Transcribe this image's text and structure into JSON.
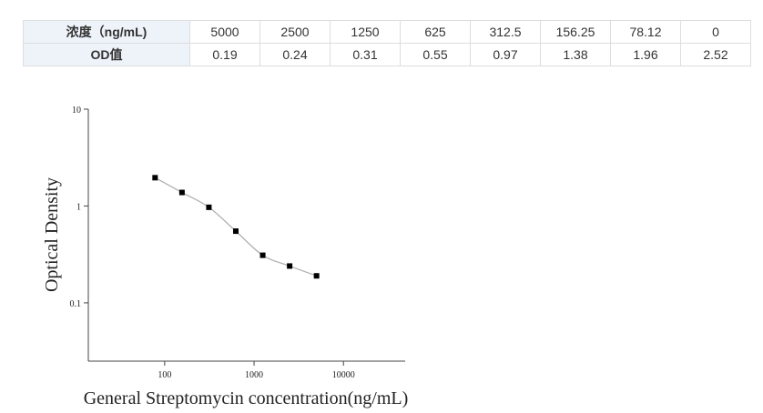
{
  "table": {
    "rows": [
      [
        "浓度（ng/mL)",
        "5000",
        "2500",
        "1250",
        "625",
        "312.5",
        "156.25",
        "78.12",
        "0"
      ],
      [
        "OD值",
        "0.19",
        "0.24",
        "0.31",
        "0.55",
        "0.97",
        "1.38",
        "1.96",
        "2.52"
      ]
    ]
  },
  "chart_data": {
    "type": "scatter",
    "x": [
      78.12,
      156.25,
      312.5,
      625,
      1250,
      2500,
      5000
    ],
    "values": [
      1.96,
      1.38,
      0.97,
      0.55,
      0.31,
      0.24,
      0.19
    ],
    "color": "#000000",
    "line_color": "#b0b0b0",
    "xlabel": "General Streptomycin concentration(ng/mL)",
    "ylabel": "Optical Density",
    "xscale": "log",
    "yscale": "log",
    "xlim": [
      14,
      49000
    ],
    "ylim": [
      0.025,
      10
    ],
    "xticks": [
      100,
      1000,
      10000
    ],
    "yticks": [
      0.1,
      1,
      10
    ]
  }
}
